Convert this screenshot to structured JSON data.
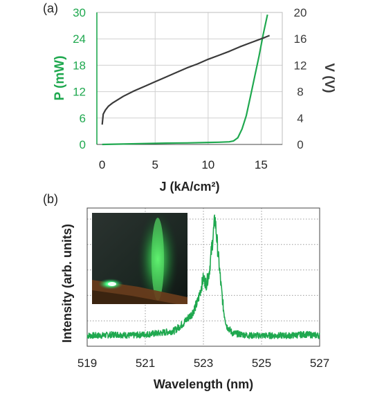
{
  "colors": {
    "green": "#1fa84f",
    "dark": "#3a3a3a",
    "grid": "#cfcfcf"
  },
  "chart_data": [
    {
      "panel_label": "(a)",
      "type": "line",
      "xlabel": "J (kA/cm²)",
      "ylabel_left": "P (mW)",
      "ylabel_right": "V (V)",
      "xlim": [
        -0.5,
        17
      ],
      "ylim_left": [
        0,
        30
      ],
      "ylim_right": [
        0,
        20
      ],
      "xticks": [
        0,
        5,
        10,
        15
      ],
      "yticks_left": [
        0,
        6,
        12,
        18,
        24,
        30
      ],
      "yticks_right": [
        0,
        4,
        8,
        12,
        16,
        20
      ],
      "grid": true,
      "series": [
        {
          "axis": "left",
          "color": "#1fa84f",
          "x": [
            0,
            2,
            4,
            6,
            8,
            10,
            11,
            12,
            12.4,
            12.8,
            13.2,
            13.6,
            14.0,
            14.4,
            14.8,
            15.2,
            15.6
          ],
          "y": [
            0.0,
            0.1,
            0.2,
            0.3,
            0.35,
            0.45,
            0.5,
            0.6,
            0.8,
            1.5,
            3.5,
            6.5,
            11.0,
            15.5,
            20.0,
            25.0,
            29.5
          ]
        },
        {
          "axis": "right",
          "color": "#3a3a3a",
          "x": [
            0,
            0.1,
            0.3,
            0.6,
            1,
            2,
            3,
            4,
            5,
            6,
            7,
            8,
            9,
            10,
            11,
            12,
            13,
            14,
            15,
            15.8
          ],
          "y": [
            3.0,
            4.6,
            5.2,
            5.8,
            6.3,
            7.3,
            8.1,
            8.8,
            9.5,
            10.2,
            10.9,
            11.6,
            12.2,
            12.9,
            13.5,
            14.1,
            14.8,
            15.4,
            16.0,
            16.5
          ]
        }
      ]
    },
    {
      "panel_label": "(b)",
      "type": "line",
      "xlabel": "Wavelength (nm)",
      "ylabel": "Intensity (arb. units)",
      "xlim": [
        519,
        527
      ],
      "xticks": [
        519,
        521,
        523,
        525,
        527
      ],
      "ylim": [
        0,
        1.05
      ],
      "grid": true,
      "series": [
        {
          "color": "#1fa84f",
          "x": [
            519.0,
            519.5,
            520.0,
            520.5,
            521.0,
            521.5,
            522.0,
            522.3,
            522.6,
            522.8,
            523.0,
            523.1,
            523.2,
            523.3,
            523.4,
            523.5,
            523.6,
            523.7,
            523.8,
            524.0,
            524.3,
            524.6,
            525.0,
            525.5,
            526.0,
            526.5,
            527.0
          ],
          "y": [
            0.02,
            0.02,
            0.03,
            0.02,
            0.03,
            0.04,
            0.06,
            0.12,
            0.2,
            0.3,
            0.5,
            0.45,
            0.55,
            0.78,
            1.0,
            0.72,
            0.45,
            0.22,
            0.1,
            0.04,
            0.03,
            0.02,
            0.02,
            0.02,
            0.02,
            0.03,
            0.02
          ]
        }
      ]
    }
  ]
}
